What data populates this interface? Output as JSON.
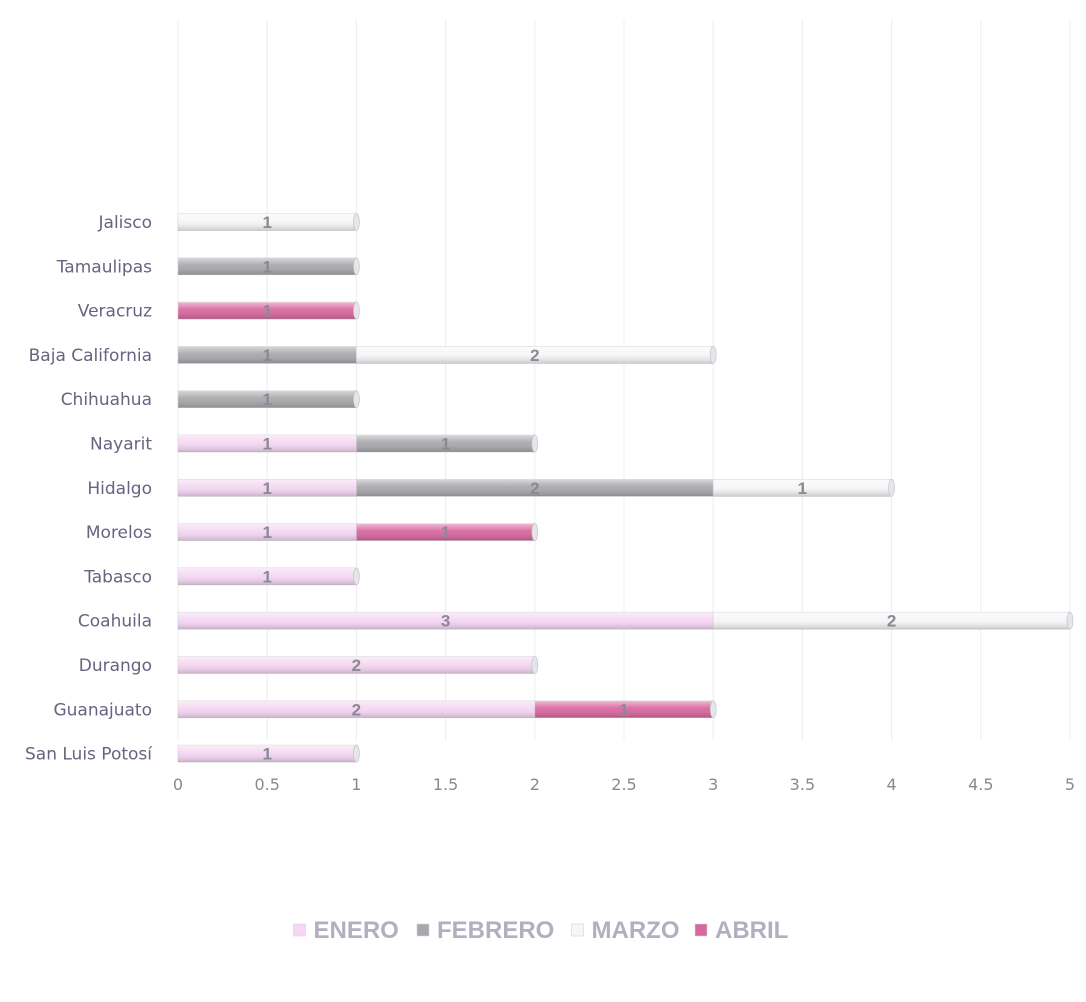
{
  "chart_data": {
    "type": "bar",
    "orientation": "horizontal",
    "stacked": true,
    "title": "",
    "xlabel": "",
    "ylabel": "",
    "xlim": [
      0,
      5
    ],
    "x_ticks": [
      "0",
      "0.5",
      "1",
      "1.5",
      "2",
      "2.5",
      "3",
      "3.5",
      "4",
      "4.5",
      "5"
    ],
    "x_tick_values": [
      0,
      0.5,
      1,
      1.5,
      2,
      2.5,
      3,
      3.5,
      4,
      4.5,
      5
    ],
    "grid": true,
    "legend_position": "bottom",
    "categories": [
      "Jalisco",
      "Tamaulipas",
      "Veracruz",
      "Baja California",
      "Chihuahua",
      "Nayarit",
      "Hidalgo",
      "Morelos",
      "Tabasco",
      "Coahuila",
      "Durango",
      "Guanajuato",
      "San Luis Potosí"
    ],
    "series": [
      {
        "name": "ENERO",
        "color": "#f5d7f3",
        "values": [
          null,
          null,
          null,
          null,
          null,
          1,
          1,
          1,
          1,
          3,
          2,
          2,
          1
        ]
      },
      {
        "name": "FEBRERO",
        "color": "#a9a9ad",
        "values": [
          null,
          1,
          null,
          1,
          1,
          1,
          2,
          null,
          null,
          null,
          null,
          null,
          null
        ]
      },
      {
        "name": "MARZO",
        "color": "#f6f6f8",
        "values": [
          1,
          null,
          null,
          2,
          null,
          null,
          1,
          null,
          null,
          2,
          null,
          null,
          null
        ]
      },
      {
        "name": "ABRIL",
        "color": "#d9679f",
        "values": [
          null,
          null,
          1,
          null,
          null,
          null,
          null,
          1,
          null,
          null,
          null,
          1,
          null
        ]
      }
    ]
  }
}
